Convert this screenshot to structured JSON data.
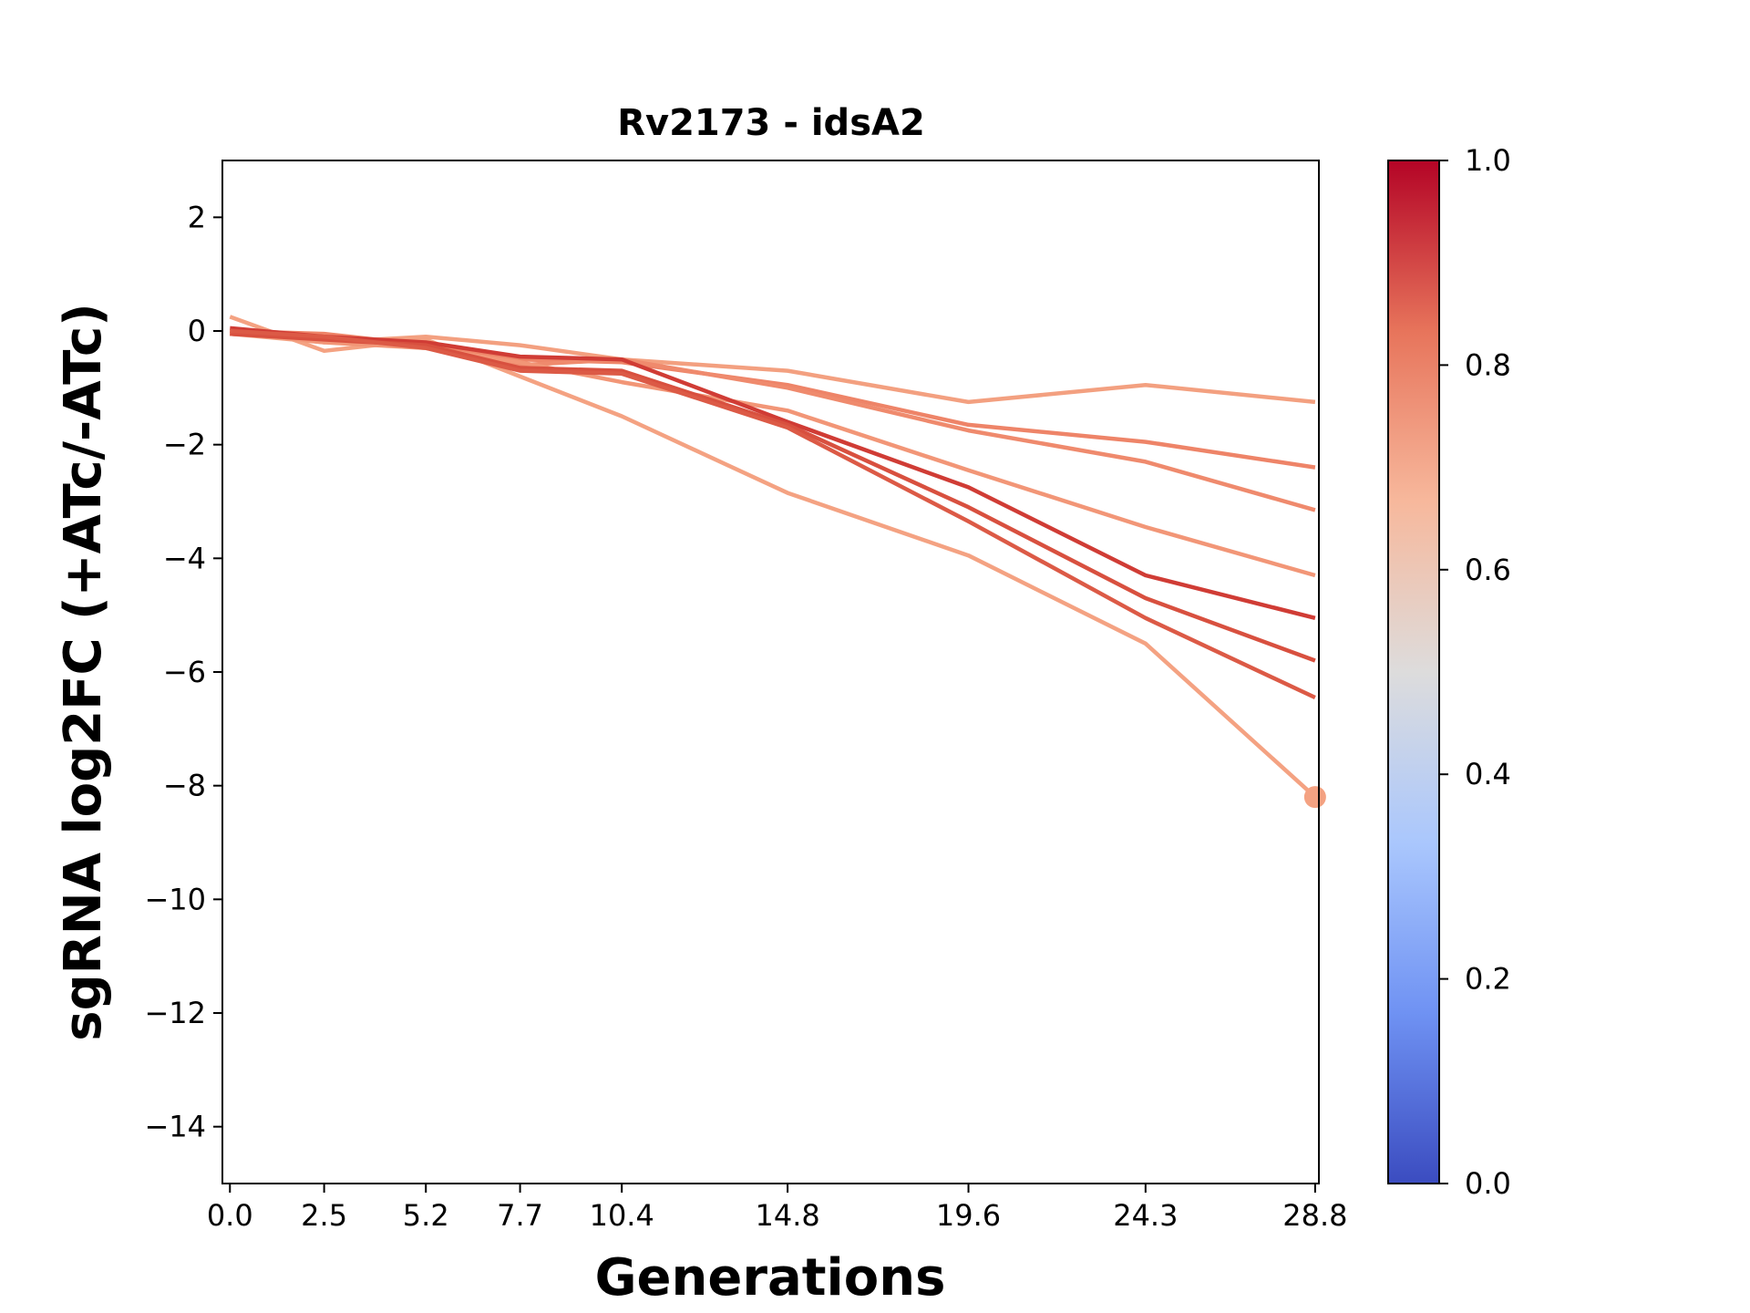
{
  "chart_data": {
    "type": "line",
    "title": "Rv2173 - idsA2",
    "xlabel": "Generations",
    "ylabel": "sgRNA log2FC (+ATc/-ATc)",
    "x": [
      0.0,
      2.5,
      5.2,
      7.7,
      10.4,
      14.8,
      19.6,
      24.3,
      28.8
    ],
    "x_tick_labels": [
      "0.0",
      "2.5",
      "5.2",
      "7.7",
      "10.4",
      "14.8",
      "19.6",
      "24.3",
      "28.8"
    ],
    "xlim": [
      -0.2,
      28.9
    ],
    "ylim": [
      -15,
      3
    ],
    "y_ticks": [
      2,
      0,
      -2,
      -4,
      -6,
      -8,
      -10,
      -12,
      -14
    ],
    "y_tick_labels": [
      "2",
      "0",
      "−2",
      "−4",
      "−6",
      "−8",
      "−10",
      "−12",
      "−14"
    ],
    "grid": false,
    "series": [
      {
        "color": "#f4a282",
        "values": [
          0.25,
          -0.35,
          -0.15,
          -0.8,
          -1.5,
          -2.85,
          -3.95,
          -5.5,
          -8.2
        ],
        "end_marker": true
      },
      {
        "color": "#f3a080",
        "values": [
          -0.05,
          -0.2,
          -0.1,
          -0.25,
          -0.5,
          -0.7,
          -1.25,
          -0.95,
          -1.25
        ]
      },
      {
        "color": "#ee8468",
        "values": [
          0.0,
          -0.05,
          -0.25,
          -0.5,
          -0.55,
          -0.95,
          -1.65,
          -1.95,
          -2.4
        ]
      },
      {
        "color": "#ef8a6d",
        "values": [
          -0.05,
          -0.15,
          -0.3,
          -0.6,
          -0.5,
          -1.0,
          -1.75,
          -2.3,
          -3.15
        ]
      },
      {
        "color": "#f29677",
        "values": [
          0.0,
          -0.2,
          -0.3,
          -0.55,
          -0.9,
          -1.4,
          -2.45,
          -3.45,
          -4.3
        ]
      },
      {
        "color": "#d03c35",
        "values": [
          0.05,
          -0.1,
          -0.2,
          -0.45,
          -0.5,
          -1.6,
          -2.75,
          -4.3,
          -5.05
        ]
      },
      {
        "color": "#d8503f",
        "values": [
          -0.05,
          -0.15,
          -0.25,
          -0.65,
          -0.7,
          -1.65,
          -3.1,
          -4.7,
          -5.8
        ]
      },
      {
        "color": "#dc5a46",
        "values": [
          0.0,
          -0.1,
          -0.3,
          -0.7,
          -0.75,
          -1.7,
          -3.35,
          -5.05,
          -6.45
        ]
      }
    ],
    "colorbar": {
      "min": 0.0,
      "max": 1.0,
      "ticks": [
        "0.0",
        "0.2",
        "0.4",
        "0.6",
        "0.8",
        "1.0"
      ],
      "colormap": "coolwarm",
      "stops": [
        "#3b4cc0",
        "#6f92f3",
        "#aac7fd",
        "#dddcdc",
        "#f7b89c",
        "#e7745b",
        "#b40426"
      ]
    }
  }
}
